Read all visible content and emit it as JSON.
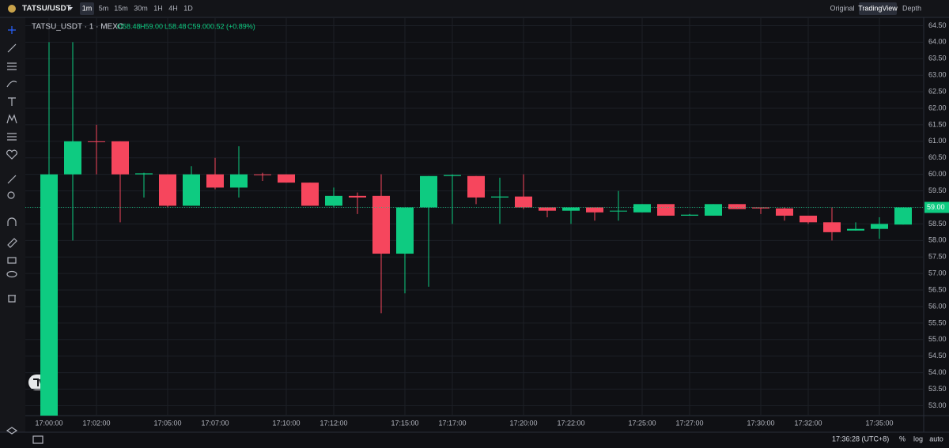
{
  "toolbar": {
    "symbol": "TATSU/USDT",
    "intervals": [
      "1m",
      "5m",
      "15m",
      "30m",
      "1H",
      "4H",
      "1D"
    ],
    "active_interval": 0,
    "views": [
      "Original",
      "TradingView",
      "Depth"
    ],
    "active_view": 1
  },
  "chart_data": {
    "type": "candlestick",
    "title": "TATSU_USDT · 1 · MEXC",
    "ohlc_labels": [
      "O58.48",
      "H59.00",
      "L58.48",
      "C59.00",
      "0.52 (+0.89%)"
    ],
    "categories": [
      "17:00:00",
      null,
      "17:02:00",
      null,
      null,
      "17:05:00",
      null,
      "17:07:00",
      null,
      null,
      "17:10:00",
      null,
      "17:12:00",
      null,
      null,
      "17:15:00",
      null,
      "17:17:00",
      null,
      null,
      "17:20:00",
      null,
      "17:22:00",
      null,
      null,
      "17:25:00",
      null,
      "17:27:00",
      null,
      null,
      "17:30:00",
      null,
      "17:32:00",
      null,
      null,
      "17:35:00",
      null
    ],
    "open": [
      52.5,
      60.0,
      61.0,
      61.0,
      60.0,
      60.0,
      59.05,
      60.0,
      59.6,
      60.0,
      60.0,
      59.75,
      59.05,
      59.35,
      59.35,
      57.6,
      59.0,
      59.95,
      59.95,
      59.3,
      59.33,
      59.0,
      58.9,
      59.0,
      58.88,
      58.85,
      59.1,
      58.75,
      58.75,
      59.1,
      59.0,
      58.97,
      58.75,
      58.55,
      58.3,
      58.35,
      58.48
    ],
    "high": [
      64.0,
      64.0,
      61.5,
      61.0,
      60.05,
      60.0,
      60.25,
      60.5,
      60.85,
      60.05,
      60.0,
      59.75,
      59.6,
      59.45,
      60.0,
      59.0,
      59.95,
      60.0,
      59.95,
      59.9,
      60.0,
      59.0,
      59.0,
      59.0,
      59.5,
      59.1,
      59.1,
      58.8,
      59.1,
      59.1,
      59.0,
      59.0,
      58.75,
      59.0,
      58.55,
      58.7,
      59.0
    ],
    "low": [
      52.5,
      58.0,
      60.0,
      58.55,
      59.3,
      59.0,
      59.05,
      59.55,
      59.3,
      59.8,
      59.75,
      59.05,
      59.0,
      58.8,
      55.8,
      56.4,
      56.6,
      58.5,
      59.1,
      58.5,
      58.95,
      58.7,
      58.5,
      58.6,
      58.6,
      58.85,
      58.75,
      58.75,
      58.75,
      58.95,
      58.8,
      58.6,
      58.5,
      58.0,
      58.3,
      58.05,
      58.48
    ],
    "close": [
      60.0,
      61.0,
      60.98,
      60.0,
      60.03,
      59.05,
      60.0,
      59.6,
      60.0,
      59.98,
      59.75,
      59.05,
      59.35,
      59.3,
      57.6,
      59.0,
      59.95,
      59.98,
      59.3,
      59.33,
      59.0,
      58.9,
      59.0,
      58.85,
      58.9,
      59.1,
      58.75,
      58.78,
      59.1,
      58.95,
      58.97,
      58.75,
      58.55,
      58.25,
      58.35,
      58.5,
      59.0
    ],
    "up_color": "#0ecb81",
    "down_color": "#f6465d",
    "ylim": [
      52.7,
      64.75
    ],
    "yticks": [
      {
        "value": 53,
        "label": "53.00"
      },
      {
        "value": 53.5,
        "label": "53.50"
      },
      {
        "value": 54,
        "label": "54.00"
      },
      {
        "value": 54.5,
        "label": "54.50"
      },
      {
        "value": 55,
        "label": "55.00"
      },
      {
        "value": 55.5,
        "label": "55.50"
      },
      {
        "value": 56,
        "label": "56.00"
      },
      {
        "value": 56.5,
        "label": "56.50"
      },
      {
        "value": 57,
        "label": "57.00"
      },
      {
        "value": 57.5,
        "label": "57.50"
      },
      {
        "value": 58,
        "label": "58.00"
      },
      {
        "value": 58.5,
        "label": "58.50"
      },
      {
        "value": 59,
        "label": "59.00"
      },
      {
        "value": 59.5,
        "label": "59.50"
      },
      {
        "value": 60,
        "label": "60.00"
      },
      {
        "value": 60.5,
        "label": "60.50"
      },
      {
        "value": 61,
        "label": "61.00"
      },
      {
        "value": 61.5,
        "label": "61.50"
      },
      {
        "value": 62,
        "label": "62.00"
      },
      {
        "value": 62.5,
        "label": "62.50"
      },
      {
        "value": 63,
        "label": "63.00"
      },
      {
        "value": 63.5,
        "label": "63.50"
      },
      {
        "value": 64,
        "label": "64.00"
      },
      {
        "value": 64.5,
        "label": "64.50"
      }
    ],
    "last_price": {
      "value": 59,
      "label": "59.00"
    },
    "grid": true
  },
  "footer": {
    "clock": "17:36:28 (UTC+8)",
    "buttons": [
      "%",
      "log",
      "auto"
    ]
  }
}
